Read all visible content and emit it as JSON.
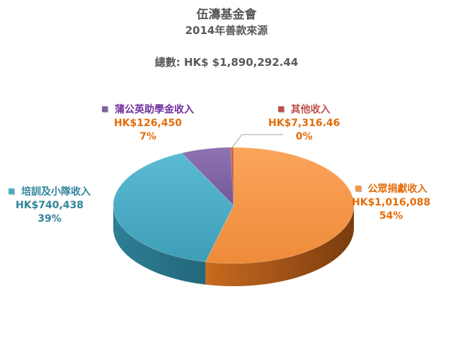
{
  "chart_data": {
    "type": "pie",
    "title": "伍濤基金會",
    "subtitle": "2014年善款來源",
    "total_label": "總數: HK$ $1,890,292.44",
    "slices": [
      {
        "name": "公眾捐獻收入",
        "value": 1016088,
        "value_label": "HK$1,016,088",
        "percent_label": "54%",
        "color": "#F79646"
      },
      {
        "name": "培訓及小隊收入",
        "value": 740438,
        "value_label": "HK$740,438",
        "percent_label": "39%",
        "color": "#4BACC6"
      },
      {
        "name": "蒲公英助學金收入",
        "value": 126450,
        "value_label": "HK$126,450",
        "percent_label": "7%",
        "color": "#8064A2"
      },
      {
        "name": "其他收入",
        "value": 7316.46,
        "value_label": "HK$7,316.46",
        "percent_label": "0%",
        "color": "#C0504D"
      }
    ],
    "legend": "data-labels-outside",
    "style": "3d-pie"
  }
}
